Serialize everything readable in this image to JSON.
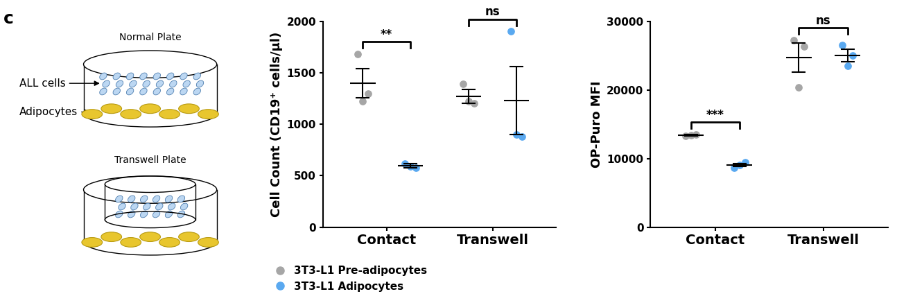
{
  "panel_label": "c",
  "schematic": {
    "normal_plate": {
      "title": "Normal Plate",
      "labels": [
        "ALL cells",
        "Adipocytes"
      ]
    },
    "transwell_plate": {
      "title": "Transwell Plate"
    }
  },
  "chart_data": [
    {
      "type": "scatter",
      "categories": [
        "Contact",
        "Transwell"
      ],
      "y_label": "Cell Count (CD19⁺ cells/µl)",
      "ylim": [
        0,
        2000
      ],
      "yticks": [
        0,
        500,
        1000,
        1500,
        2000
      ],
      "legend": "upper left",
      "series": [
        {
          "name": "3T3-L1 Pre-adipocytes",
          "color": "#a6a6a6",
          "marker": "o",
          "points": [
            [
              1680,
              1300,
              1220
            ],
            [
              1390,
              1200,
              1220
            ]
          ],
          "mean": [
            1400,
            1270
          ],
          "sem": [
            140,
            70
          ]
        },
        {
          "name": "3T3-L1 Adipocytes",
          "color": "#5aa9f0",
          "marker": "o",
          "points": [
            [
              620,
              580,
              590
            ],
            [
              1900,
              880,
              900
            ]
          ],
          "mean": [
            595,
            1230
          ],
          "sem": [
            20,
            330
          ]
        }
      ],
      "comparisons": [
        "**",
        "ns"
      ]
    },
    {
      "type": "scatter",
      "categories": [
        "Contact",
        "Transwell"
      ],
      "y_label": "OP-Puro MFI",
      "ylim": [
        0,
        30000
      ],
      "yticks": [
        0,
        10000,
        20000,
        30000
      ],
      "series": [
        {
          "name": "3T3-L1 Pre-adipocytes",
          "color": "#a6a6a6",
          "marker": "o",
          "points": [
            [
              13300,
              13500,
              13400
            ],
            [
              27200,
              26300,
              20400
            ]
          ],
          "mean": [
            13400,
            24700
          ],
          "sem": [
            100,
            2100
          ]
        },
        {
          "name": "3T3-L1 Adipocytes",
          "color": "#5aa9f0",
          "marker": "o",
          "points": [
            [
              8700,
              9500,
              9100
            ],
            [
              26500,
              25000,
              23500
            ]
          ],
          "mean": [
            9100,
            25000
          ],
          "sem": [
            200,
            900
          ]
        }
      ],
      "comparisons": [
        "***",
        "ns"
      ]
    }
  ]
}
